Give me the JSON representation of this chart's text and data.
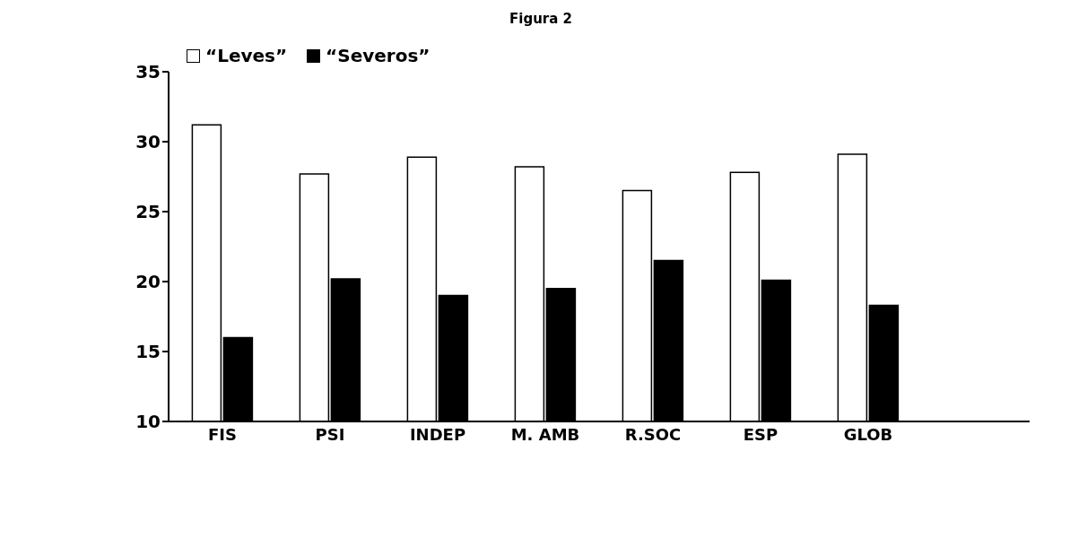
{
  "chart_data": {
    "type": "bar",
    "title": "Figura 2",
    "categories": [
      "FIS",
      "PSI",
      "INDEP",
      "M. AMB",
      "R.SOC",
      "ESP",
      "GLOB",
      null
    ],
    "series": [
      {
        "name": "“Leves”",
        "color": "#ffffff",
        "values": [
          31.2,
          27.7,
          28.9,
          28.2,
          26.5,
          27.8,
          29.1,
          null
        ]
      },
      {
        "name": "“Severos”",
        "color": "#000000",
        "values": [
          16.0,
          20.2,
          19.0,
          19.5,
          21.5,
          20.1,
          18.3,
          null
        ]
      }
    ],
    "ylim": [
      10,
      35
    ],
    "yticks": [
      10,
      15,
      20,
      25,
      30,
      35
    ],
    "grid": false,
    "legend": "top left"
  }
}
